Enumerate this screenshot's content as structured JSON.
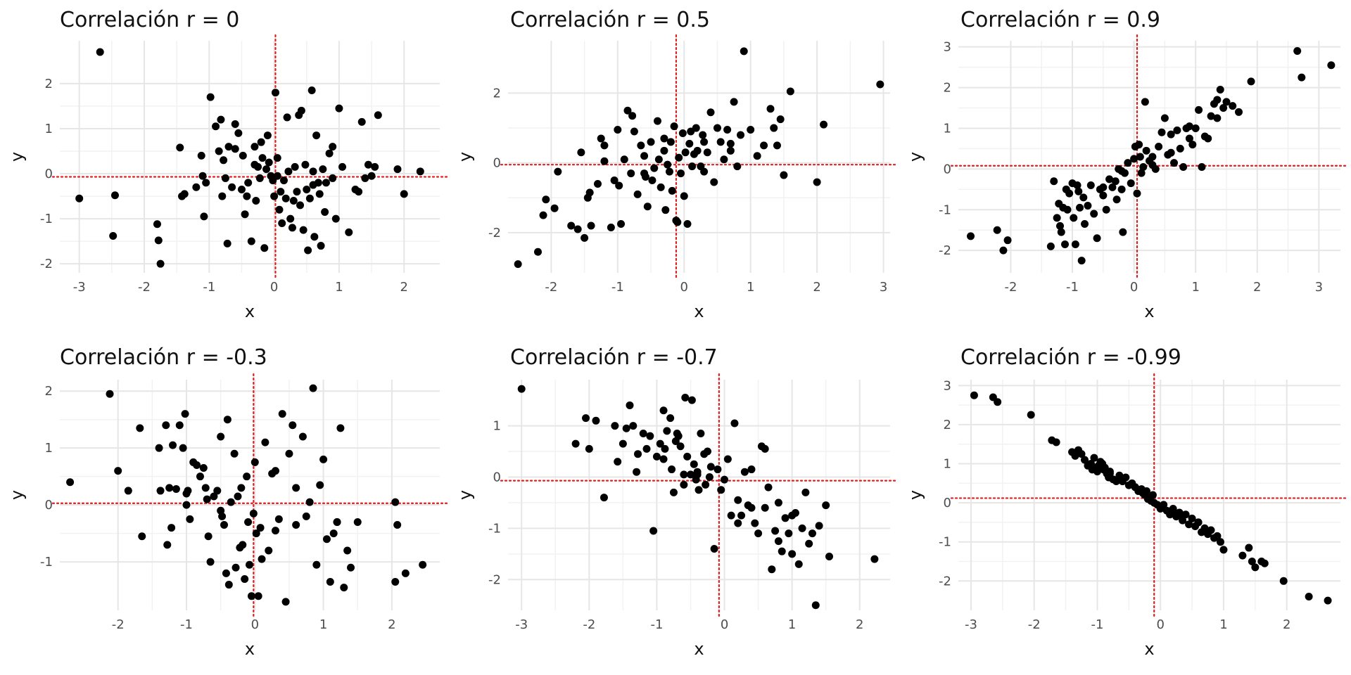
{
  "chart_data": [
    {
      "type": "scatter",
      "title": "Correlación r = 0",
      "xlabel": "x",
      "ylabel": "y",
      "xlim": [
        -3.3,
        2.55
      ],
      "ylim": [
        -2.2,
        2.95
      ],
      "xticks": [
        -3,
        -2,
        -1,
        0,
        1,
        2
      ],
      "yticks": [
        -2,
        -1,
        0,
        1,
        2
      ],
      "xticklabels": [
        "-3",
        "-2",
        "-1",
        "0",
        "1",
        "2"
      ],
      "yticklabels": [
        "-2",
        "-1",
        "0",
        "1",
        "2"
      ],
      "grid": true,
      "mean_x": 0.02,
      "mean_y": -0.07,
      "x": [
        -2.68,
        -3.0,
        -2.45,
        -2.48,
        -1.78,
        -1.75,
        -1.8,
        -1.45,
        -1.42,
        -1.38,
        -1.2,
        -1.12,
        -1.08,
        -1.05,
        -1.1,
        -0.98,
        -0.9,
        -0.85,
        -0.82,
        -0.8,
        -0.75,
        -0.72,
        -0.78,
        -0.7,
        -0.65,
        -0.6,
        -0.55,
        -0.5,
        -0.48,
        -0.45,
        -0.42,
        -0.4,
        -0.35,
        -0.3,
        -0.28,
        -0.25,
        -0.22,
        -0.2,
        -0.18,
        -0.15,
        -0.12,
        -0.1,
        -0.08,
        -0.05,
        -0.02,
        0.0,
        0.02,
        0.05,
        0.08,
        0.1,
        0.12,
        0.15,
        0.18,
        0.2,
        0.22,
        0.25,
        0.28,
        0.3,
        0.32,
        0.35,
        0.38,
        0.4,
        0.42,
        0.45,
        0.48,
        0.5,
        0.52,
        0.55,
        0.58,
        0.6,
        0.62,
        0.65,
        0.68,
        0.7,
        0.72,
        0.75,
        0.78,
        0.8,
        0.85,
        0.9,
        0.95,
        1.0,
        1.05,
        1.15,
        1.25,
        1.3,
        1.35,
        1.4,
        1.45,
        1.5,
        1.55,
        1.6,
        1.9,
        2.0,
        2.25,
        0.05,
        -0.6,
        -0.3,
        0.6,
        0.9
      ],
      "y": [
        2.7,
        -0.55,
        -0.48,
        -1.38,
        -1.48,
        -2.0,
        -1.12,
        0.58,
        -0.5,
        -0.45,
        -0.3,
        0.4,
        -0.95,
        -0.2,
        -0.05,
        1.7,
        1.05,
        0.5,
        1.2,
        -0.5,
        -0.1,
        -1.55,
        0.3,
        0.6,
        -0.3,
        1.1,
        0.9,
        -0.35,
        0.4,
        -0.9,
        -0.5,
        -0.2,
        -1.5,
        0.6,
        -0.6,
        0.15,
        -0.1,
        0.7,
        0.35,
        -1.65,
        0.1,
        0.85,
        0.25,
        -0.05,
        -0.15,
        -0.5,
        1.8,
        0.35,
        -0.8,
        -0.4,
        -1.1,
        -0.15,
        -0.55,
        1.25,
        0.05,
        -1.0,
        -1.2,
        -0.6,
        0.15,
        -0.4,
        1.3,
        -0.7,
        1.4,
        -1.25,
        0.2,
        -0.35,
        -1.7,
        -0.55,
        1.85,
        0.05,
        -1.4,
        0.85,
        -0.2,
        -0.45,
        -1.6,
        0.1,
        -0.85,
        -0.2,
        0.45,
        -0.1,
        -1.0,
        1.45,
        0.15,
        -1.3,
        -0.35,
        -0.4,
        1.15,
        -0.1,
        0.2,
        -0.05,
        0.15,
        1.3,
        0.1,
        -0.45,
        0.05,
        -0.05,
        0.55,
        0.2,
        -0.25,
        0.6
      ]
    },
    {
      "type": "scatter",
      "title": "Correlación r = 0.5",
      "xlabel": "x",
      "ylabel": "y",
      "xlim": [
        -2.65,
        3.1
      ],
      "ylim": [
        -3.15,
        3.5
      ],
      "xticks": [
        -2,
        -1,
        0,
        1,
        2,
        3
      ],
      "yticks": [
        -2,
        0,
        2
      ],
      "xticklabels": [
        "-2",
        "-1",
        "0",
        "1",
        "2",
        "3"
      ],
      "yticklabels": [
        "-2",
        "0",
        "2"
      ],
      "grid": true,
      "mean_x": -0.12,
      "mean_y": -0.05,
      "x": [
        -2.5,
        -2.2,
        -2.12,
        -2.08,
        -1.95,
        -1.9,
        -1.7,
        -1.6,
        -1.55,
        -1.5,
        -1.45,
        -1.42,
        -1.4,
        -1.3,
        -1.25,
        -1.2,
        -1.1,
        -1.05,
        -1.0,
        -0.98,
        -0.95,
        -0.9,
        -0.85,
        -0.8,
        -0.78,
        -0.75,
        -0.7,
        -0.65,
        -0.6,
        -0.58,
        -0.55,
        -0.5,
        -0.48,
        -0.45,
        -0.4,
        -0.38,
        -0.35,
        -0.3,
        -0.28,
        -0.25,
        -0.22,
        -0.2,
        -0.18,
        -0.15,
        -0.12,
        -0.1,
        -0.08,
        -0.05,
        -0.02,
        0.0,
        0.02,
        0.05,
        0.08,
        0.1,
        0.12,
        0.15,
        0.18,
        0.2,
        0.25,
        0.28,
        0.3,
        0.35,
        0.4,
        0.45,
        0.5,
        0.55,
        0.6,
        0.65,
        0.7,
        0.75,
        0.8,
        0.85,
        0.9,
        1.0,
        1.1,
        1.2,
        1.3,
        1.35,
        1.4,
        1.45,
        1.5,
        1.6,
        2.0,
        2.1,
        2.95,
        -1.2,
        -0.6,
        0.3,
        0.7,
        -0.3
      ],
      "y": [
        -2.9,
        -2.55,
        -1.5,
        -1.05,
        -1.3,
        -0.25,
        -1.8,
        -1.9,
        0.3,
        -2.15,
        -1.0,
        -0.85,
        -1.8,
        -0.6,
        0.7,
        0.5,
        -1.85,
        -0.5,
        0.95,
        -0.65,
        -1.75,
        0.1,
        1.5,
        -0.3,
        1.35,
        0.9,
        -0.9,
        0.5,
        0.2,
        -0.4,
        -1.25,
        0.6,
        -0.5,
        -0.15,
        1.2,
        0.1,
        -0.7,
        0.35,
        -1.35,
        -0.05,
        -0.25,
        0.6,
        -0.8,
        1.05,
        -1.65,
        -1.7,
        0.15,
        -0.3,
        0.85,
        -0.95,
        0.3,
        -1.75,
        0.55,
        0.9,
        -0.1,
        0.25,
        1.0,
        0.35,
        -0.1,
        0.8,
        -0.25,
        0.3,
        1.45,
        -0.55,
        1.0,
        0.6,
        0.1,
        0.95,
        0.55,
        1.75,
        -0.1,
        0.8,
        3.2,
        0.95,
        0.2,
        0.5,
        1.55,
        1.0,
        0.5,
        1.25,
        -0.35,
        2.05,
        -0.55,
        1.1,
        2.25,
        0.05,
        -0.3,
        0.6,
        0.35,
        0.7
      ]
    },
    {
      "type": "scatter",
      "title": "Correlación r = 0.9",
      "xlabel": "x",
      "ylabel": "y",
      "xlim": [
        -2.85,
        3.35
      ],
      "ylim": [
        -2.55,
        3.15
      ],
      "xticks": [
        -2,
        -1,
        0,
        1,
        2,
        3
      ],
      "yticks": [
        -2,
        -1,
        0,
        1,
        2,
        3
      ],
      "xticklabels": [
        "-2",
        "-1",
        "0",
        "1",
        "2",
        "3"
      ],
      "yticklabels": [
        "-2",
        "-1",
        "0",
        "1",
        "2",
        "3"
      ],
      "grid": true,
      "mean_x": 0.05,
      "mean_y": 0.08,
      "x": [
        -2.65,
        -2.22,
        -2.12,
        -2.05,
        -1.35,
        -1.3,
        -1.25,
        -1.22,
        -1.2,
        -1.18,
        -1.15,
        -1.12,
        -1.1,
        -1.08,
        -1.05,
        -1.0,
        -0.98,
        -0.95,
        -0.92,
        -0.9,
        -0.88,
        -0.85,
        -0.82,
        -0.8,
        -0.75,
        -0.7,
        -0.65,
        -0.6,
        -0.55,
        -0.5,
        -0.45,
        -0.4,
        -0.35,
        -0.3,
        -0.28,
        -0.25,
        -0.2,
        -0.18,
        -0.15,
        -0.1,
        -0.05,
        0.0,
        0.02,
        0.05,
        0.08,
        0.1,
        0.12,
        0.15,
        0.18,
        0.2,
        0.25,
        0.3,
        0.35,
        0.4,
        0.45,
        0.5,
        0.55,
        0.6,
        0.65,
        0.7,
        0.75,
        0.8,
        0.85,
        0.9,
        0.95,
        1.0,
        1.05,
        1.1,
        1.15,
        1.2,
        1.25,
        1.3,
        1.35,
        1.4,
        1.45,
        1.5,
        1.6,
        1.7,
        1.9,
        2.65,
        2.72,
        3.2,
        -0.5,
        0.3,
        0.6,
        -0.2,
        0.9,
        1.35
      ],
      "y": [
        -1.65,
        -1.5,
        -2.0,
        -1.75,
        -1.9,
        -0.3,
        -1.2,
        -0.85,
        -1.4,
        -1.55,
        -0.95,
        -1.85,
        -0.5,
        -1.0,
        -0.6,
        -0.35,
        -1.2,
        -1.85,
        -0.4,
        -0.55,
        -0.95,
        -2.25,
        -0.7,
        -1.35,
        -0.9,
        -0.4,
        -1.1,
        -1.7,
        -0.5,
        -0.65,
        -1.0,
        -0.25,
        -0.45,
        -0.3,
        -0.75,
        0.0,
        -0.5,
        -1.55,
        -0.1,
        0.15,
        -0.35,
        0.25,
        0.55,
        -0.6,
        0.6,
        0.3,
        -0.1,
        0.05,
        1.65,
        0.45,
        0.2,
        0.3,
        0.0,
        0.55,
        0.9,
        1.25,
        0.35,
        0.85,
        0.15,
        0.95,
        0.5,
        0.05,
        1.0,
        0.75,
        0.6,
        1.0,
        1.45,
        0.05,
        0.8,
        0.75,
        1.3,
        1.6,
        1.25,
        1.95,
        1.5,
        1.65,
        1.55,
        1.4,
        2.15,
        2.9,
        2.25,
        2.55,
        -0.45,
        0.1,
        0.4,
        -0.05,
        1.05,
        1.7
      ]
    },
    {
      "type": "scatter",
      "title": "Correlación r = -0.3",
      "xlabel": "x",
      "ylabel": "y",
      "xlim": [
        -2.85,
        2.7
      ],
      "ylim": [
        -1.85,
        2.2
      ],
      "xticks": [
        -2,
        -1,
        0,
        1,
        2
      ],
      "yticks": [
        -1,
        0,
        1,
        2
      ],
      "xticklabels": [
        "-2",
        "-1",
        "0",
        "1",
        "2"
      ],
      "yticklabels": [
        "-1",
        "0",
        "1",
        "2"
      ],
      "grid": true,
      "mean_x": -0.02,
      "mean_y": 0.03,
      "x": [
        -2.7,
        -2.12,
        -2.0,
        -1.85,
        -1.68,
        -1.65,
        -1.4,
        -1.38,
        -1.3,
        -1.28,
        -1.25,
        -1.22,
        -1.2,
        -1.15,
        -1.1,
        -1.05,
        -1.02,
        -1.0,
        -0.98,
        -0.95,
        -0.9,
        -0.85,
        -0.8,
        -0.75,
        -0.72,
        -0.7,
        -0.68,
        -0.65,
        -0.6,
        -0.55,
        -0.5,
        -0.48,
        -0.45,
        -0.42,
        -0.4,
        -0.38,
        -0.35,
        -0.3,
        -0.28,
        -0.25,
        -0.22,
        -0.2,
        -0.18,
        -0.15,
        -0.12,
        -0.1,
        -0.08,
        -0.05,
        -0.02,
        0.0,
        0.02,
        0.05,
        0.08,
        0.1,
        0.15,
        0.2,
        0.25,
        0.3,
        0.35,
        0.4,
        0.45,
        0.5,
        0.55,
        0.6,
        0.7,
        0.75,
        0.8,
        0.85,
        0.9,
        0.95,
        1.0,
        1.05,
        1.1,
        1.15,
        1.2,
        1.25,
        1.3,
        1.35,
        1.4,
        1.5,
        2.05,
        2.08,
        2.05,
        2.2,
        2.45,
        -0.5,
        0.3,
        0.6,
        -1.0,
        1.2
      ],
      "y": [
        0.4,
        1.95,
        0.6,
        0.25,
        1.35,
        -0.55,
        1.0,
        0.25,
        1.4,
        -0.7,
        0.3,
        -0.4,
        1.05,
        0.28,
        1.4,
        1.0,
        1.6,
        0.0,
        0.25,
        -0.25,
        0.75,
        0.7,
        0.5,
        0.65,
        0.3,
        0.1,
        -0.55,
        -1.0,
        0.15,
        0.25,
        1.2,
        -0.2,
        -0.35,
        -1.2,
        1.5,
        -1.4,
        0.05,
        0.9,
        -1.1,
        0.15,
        -0.75,
        0.3,
        -0.7,
        -1.3,
        0.5,
        -0.3,
        -1.05,
        -1.6,
        -0.15,
        0.75,
        -0.5,
        -1.6,
        -0.4,
        -0.95,
        1.1,
        -0.8,
        0.55,
        0.6,
        -0.25,
        1.6,
        -1.7,
        0.9,
        1.4,
        -0.35,
        1.2,
        -0.2,
        0.05,
        2.05,
        -1.05,
        0.35,
        0.8,
        -0.6,
        -1.35,
        -0.5,
        -0.3,
        1.35,
        -1.45,
        -0.8,
        -1.1,
        -0.3,
        0.05,
        -0.35,
        -1.35,
        -1.2,
        -1.05,
        -0.1,
        -0.45,
        0.3,
        0.2,
        -0.3
      ]
    },
    {
      "type": "scatter",
      "title": "Correlación r = -0.7",
      "xlabel": "x",
      "ylabel": "y",
      "xlim": [
        -3.2,
        2.45
      ],
      "ylim": [
        -2.6,
        1.9
      ],
      "xticks": [
        -3,
        -2,
        -1,
        0,
        1,
        2
      ],
      "yticks": [
        -2,
        -1,
        0,
        1
      ],
      "xticklabels": [
        "-3",
        "-2",
        "-1",
        "0",
        "1",
        "2"
      ],
      "yticklabels": [
        "-2",
        "-1",
        "0",
        "1"
      ],
      "grid": true,
      "mean_x": -0.08,
      "mean_y": -0.07,
      "x": [
        -3.0,
        -2.2,
        -2.05,
        -2.0,
        -1.9,
        -1.78,
        -1.62,
        -1.58,
        -1.5,
        -1.45,
        -1.4,
        -1.35,
        -1.3,
        -1.28,
        -1.2,
        -1.15,
        -1.1,
        -1.05,
        -1.0,
        -0.95,
        -0.9,
        -0.88,
        -0.85,
        -0.8,
        -0.78,
        -0.75,
        -0.72,
        -0.7,
        -0.68,
        -0.65,
        -0.6,
        -0.58,
        -0.55,
        -0.5,
        -0.48,
        -0.45,
        -0.42,
        -0.4,
        -0.38,
        -0.35,
        -0.3,
        -0.28,
        -0.25,
        -0.22,
        -0.2,
        -0.15,
        -0.1,
        -0.05,
        0.0,
        0.05,
        0.1,
        0.15,
        0.2,
        0.25,
        0.3,
        0.35,
        0.4,
        0.45,
        0.5,
        0.55,
        0.6,
        0.65,
        0.7,
        0.75,
        0.8,
        0.85,
        0.9,
        0.95,
        1.0,
        1.05,
        1.1,
        1.15,
        1.2,
        1.25,
        1.3,
        1.35,
        1.4,
        1.5,
        1.55,
        2.22,
        -0.4,
        0.2,
        0.6,
        -0.9,
        0.4,
        0.8,
        1.0,
        -0.6
      ],
      "y": [
        1.72,
        0.65,
        1.15,
        0.55,
        1.1,
        -0.4,
        1.0,
        0.3,
        0.65,
        0.95,
        1.4,
        1.0,
        0.1,
        0.45,
        0.85,
        0.55,
        0.8,
        -1.05,
        0.4,
        0.65,
        1.3,
        0.55,
        0.9,
        1.15,
        0.15,
        -0.3,
        0.7,
        0.85,
        0.8,
        0.6,
        -0.15,
        1.55,
        0.4,
        0.05,
        1.5,
        0.25,
        -0.05,
        0.1,
        -0.25,
        0.85,
        0.45,
        -0.15,
        0.5,
        0.0,
        0.2,
        -1.4,
        0.15,
        -0.25,
        -0.05,
        0.35,
        -0.75,
        1.05,
        -0.45,
        -0.75,
        0.1,
        -0.55,
        -0.6,
        -0.9,
        -1.1,
        0.6,
        0.55,
        -0.2,
        -1.8,
        -1.05,
        -0.5,
        -1.45,
        -0.8,
        -1.1,
        -1.5,
        -0.7,
        -1.7,
        -1.0,
        -0.3,
        -1.3,
        -1.1,
        -2.5,
        -0.95,
        -0.55,
        -1.55,
        -1.6,
        0.05,
        -0.9,
        -0.6,
        0.35,
        0.15,
        -1.25,
        -0.75,
        0.05
      ]
    },
    {
      "type": "scatter",
      "title": "Correlación r = -0.99",
      "xlabel": "x",
      "ylabel": "y",
      "xlim": [
        -3.2,
        2.85
      ],
      "ylim": [
        -2.75,
        3.15
      ],
      "xticks": [
        -3,
        -2,
        -1,
        0,
        1,
        2
      ],
      "yticks": [
        -2,
        -1,
        0,
        1,
        2,
        3
      ],
      "xticklabels": [
        "-3",
        "-2",
        "-1",
        "0",
        "1",
        "2"
      ],
      "yticklabels": [
        "-2",
        "-1",
        "0",
        "1",
        "2",
        "3"
      ],
      "grid": true,
      "mean_x": -0.1,
      "mean_y": 0.12,
      "x": [
        -2.95,
        -2.65,
        -2.58,
        -2.05,
        -1.72,
        -1.65,
        -1.4,
        -1.35,
        -1.3,
        -1.25,
        -1.2,
        -1.15,
        -1.1,
        -1.08,
        -1.05,
        -1.02,
        -1.0,
        -0.98,
        -0.95,
        -0.92,
        -0.9,
        -0.88,
        -0.85,
        -0.82,
        -0.8,
        -0.75,
        -0.7,
        -0.65,
        -0.6,
        -0.55,
        -0.5,
        -0.45,
        -0.4,
        -0.35,
        -0.3,
        -0.28,
        -0.25,
        -0.22,
        -0.2,
        -0.18,
        -0.15,
        -0.12,
        -0.1,
        -0.05,
        0.0,
        0.05,
        0.1,
        0.15,
        0.2,
        0.25,
        0.3,
        0.35,
        0.4,
        0.45,
        0.5,
        0.55,
        0.6,
        0.65,
        0.7,
        0.75,
        0.8,
        0.85,
        0.9,
        0.95,
        1.0,
        1.3,
        1.4,
        1.45,
        1.5,
        1.6,
        1.65,
        1.95,
        2.35,
        2.65,
        -0.6,
        0.2,
        -0.4,
        0.6,
        -0.8,
        0.35
      ],
      "y": [
        2.75,
        2.7,
        2.58,
        2.25,
        1.6,
        1.55,
        1.3,
        1.2,
        1.35,
        1.25,
        1.1,
        0.95,
        1.0,
        0.85,
        1.15,
        0.9,
        0.8,
        0.95,
        1.05,
        1.0,
        0.85,
        0.9,
        0.75,
        0.65,
        0.8,
        0.6,
        0.55,
        0.7,
        0.55,
        0.65,
        0.45,
        0.5,
        0.4,
        0.3,
        0.35,
        0.25,
        0.2,
        0.3,
        0.1,
        0.15,
        0.05,
        0.2,
        0.0,
        -0.05,
        -0.15,
        -0.05,
        -0.2,
        -0.3,
        -0.15,
        -0.35,
        -0.25,
        -0.45,
        -0.3,
        -0.55,
        -0.4,
        -0.6,
        -0.5,
        -0.75,
        -0.65,
        -0.8,
        -0.7,
        -0.9,
        -0.85,
        -1.0,
        -1.2,
        -1.35,
        -1.15,
        -1.5,
        -1.65,
        -1.5,
        -1.55,
        -2.0,
        -2.4,
        -2.5,
        0.55,
        -0.2,
        0.4,
        -0.5,
        0.75,
        -0.35
      ]
    }
  ]
}
